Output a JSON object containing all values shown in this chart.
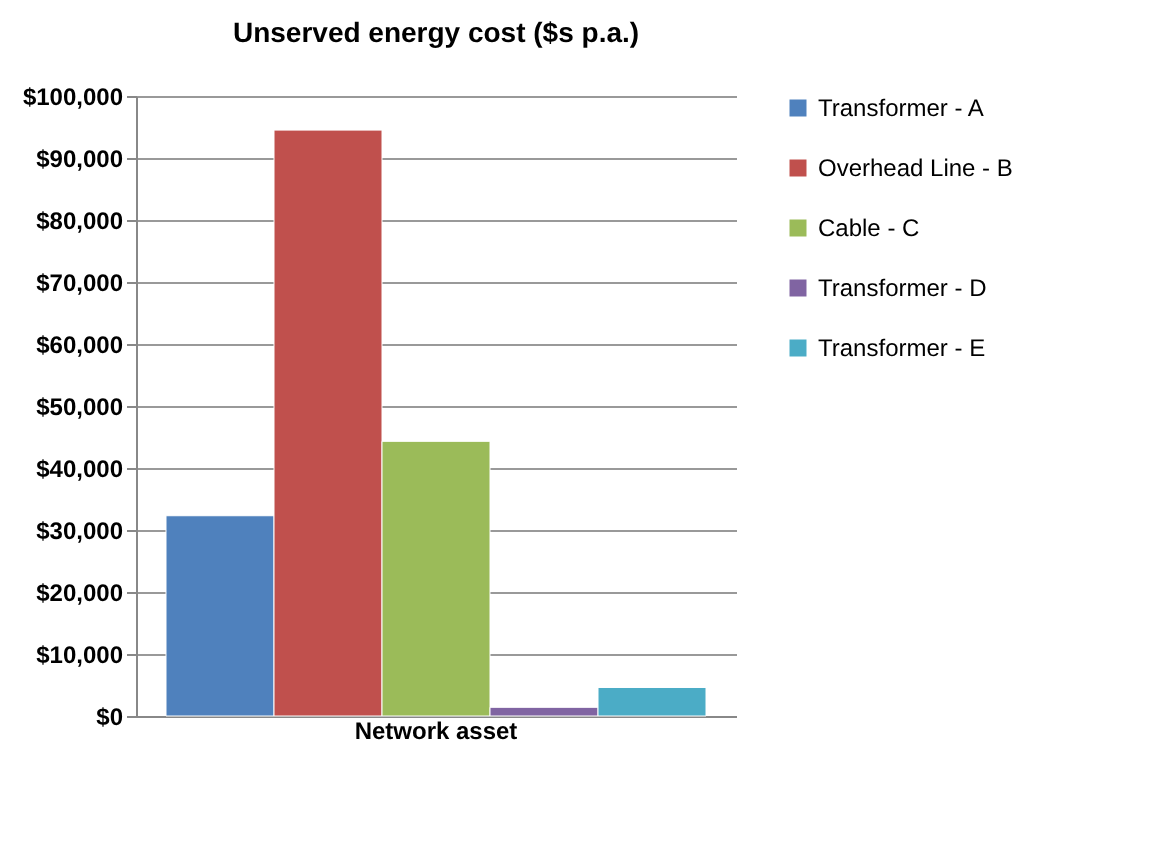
{
  "chart_data": {
    "type": "bar",
    "title": "Unserved energy cost ($s p.a.)",
    "categories": [
      "Network asset"
    ],
    "series": [
      {
        "name": "Transformer - A",
        "color": "#4f81bd",
        "values": [
          32300
        ]
      },
      {
        "name": "Overhead Line - B",
        "color": "#c0504d",
        "values": [
          94500
        ]
      },
      {
        "name": "Cable - C",
        "color": "#9bbb59",
        "values": [
          44300
        ]
      },
      {
        "name": "Transformer - D",
        "color": "#8064a2",
        "values": [
          1400
        ]
      },
      {
        "name": "Transformer - E",
        "color": "#4bacc6",
        "values": [
          4600
        ]
      }
    ],
    "ylim": [
      0,
      100000
    ],
    "yticks": [
      {
        "value": 0,
        "label": "$0"
      },
      {
        "value": 10000,
        "label": "$10,000"
      },
      {
        "value": 20000,
        "label": "$20,000"
      },
      {
        "value": 30000,
        "label": "$30,000"
      },
      {
        "value": 40000,
        "label": "$40,000"
      },
      {
        "value": 50000,
        "label": "$50,000"
      },
      {
        "value": 60000,
        "label": "$60,000"
      },
      {
        "value": 70000,
        "label": "$70,000"
      },
      {
        "value": 80000,
        "label": "$80,000"
      },
      {
        "value": 90000,
        "label": "$90,000"
      },
      {
        "value": 100000,
        "label": "$100,000"
      }
    ],
    "grid": "y",
    "legend": "right"
  }
}
